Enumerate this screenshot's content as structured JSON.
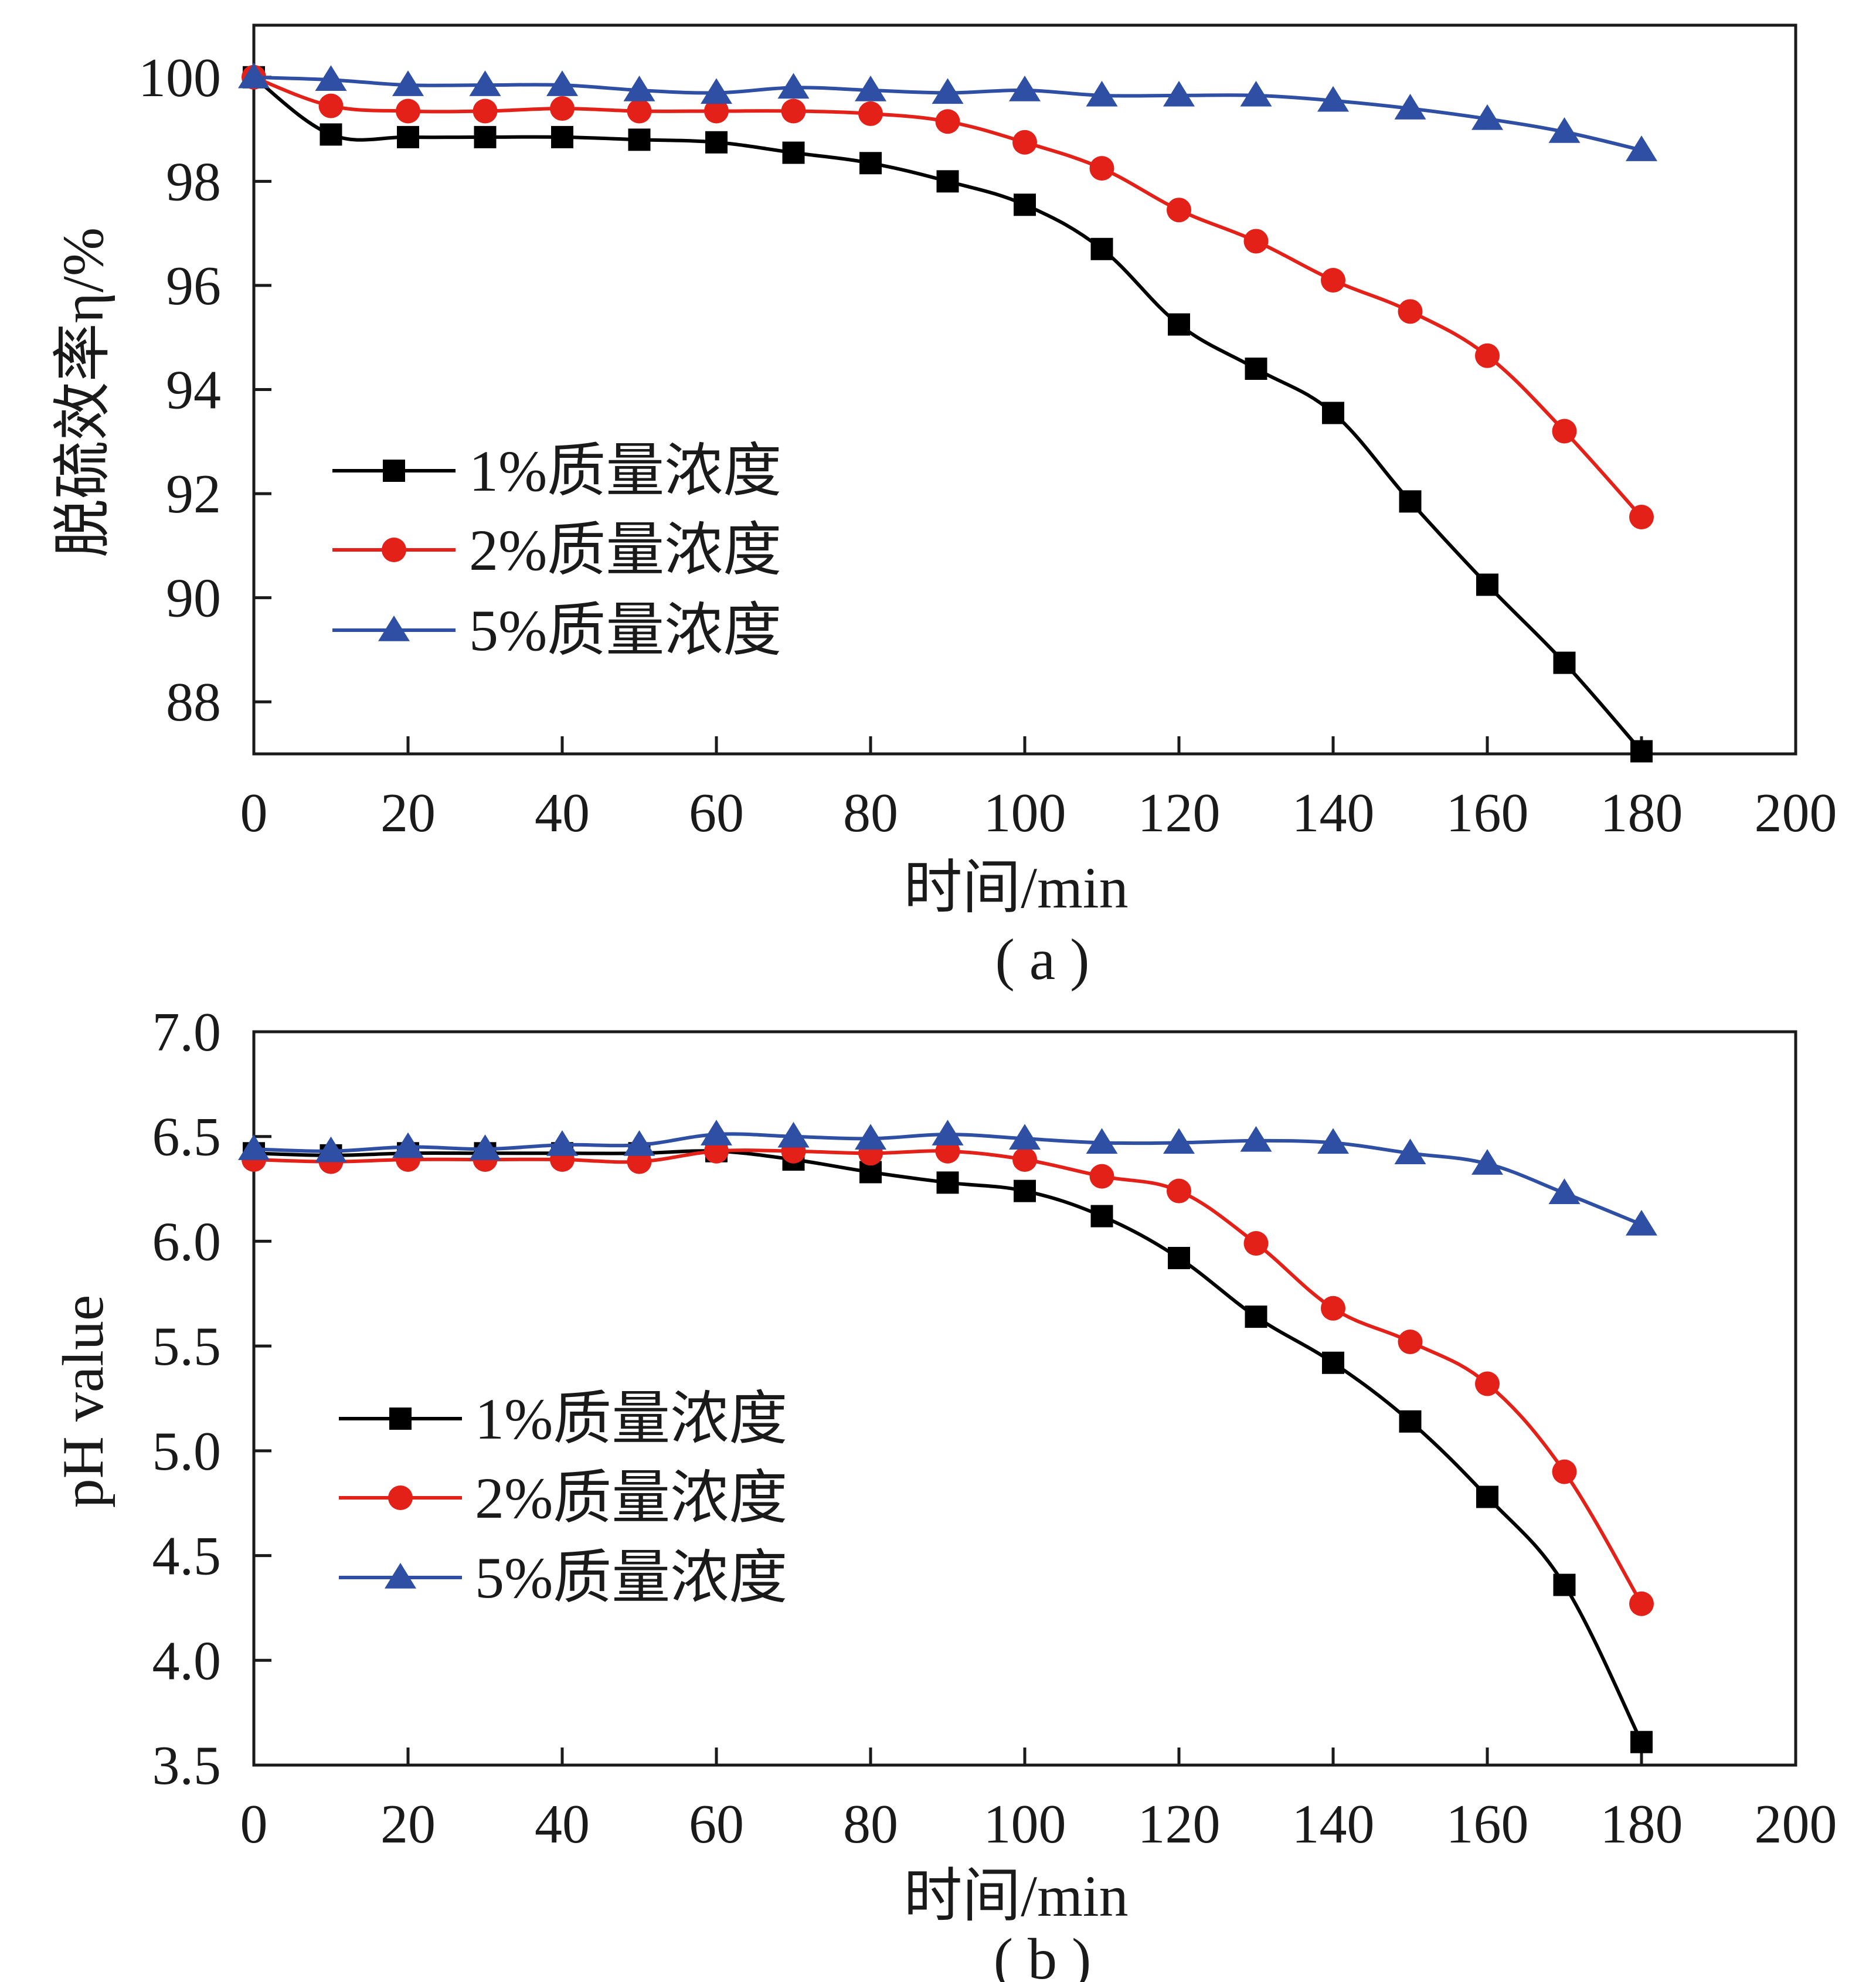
{
  "figure": {
    "panel_labels": [
      "( a )",
      "( b )"
    ]
  },
  "series_colors": [
    "#000000",
    "#e32119",
    "#2e4fa3"
  ],
  "series_markers": [
    "square",
    "circle",
    "triangle"
  ],
  "chart_data": [
    {
      "type": "line",
      "panel": "( a )",
      "xlabel": "时间/min",
      "ylabel": "脱硫效率η/%",
      "xlim": [
        0,
        200
      ],
      "ylim": [
        87,
        101
      ],
      "xticks": [
        "0",
        "20",
        "40",
        "60",
        "80",
        "100",
        "120",
        "140",
        "160",
        "180",
        "200"
      ],
      "yticks": [
        "88",
        "90",
        "92",
        "94",
        "96",
        "98",
        "100"
      ],
      "grid": false,
      "legend_position": "center-left",
      "x": [
        0,
        10,
        20,
        30,
        40,
        50,
        60,
        70,
        80,
        90,
        100,
        110,
        120,
        130,
        140,
        150,
        160,
        170,
        180
      ],
      "series": [
        {
          "name": "1%质量浓度",
          "values": [
            100,
            98.9,
            98.85,
            98.85,
            98.85,
            98.8,
            98.75,
            98.55,
            98.35,
            98.0,
            97.55,
            96.7,
            95.25,
            94.4,
            93.55,
            91.85,
            90.25,
            88.75,
            87.05
          ]
        },
        {
          "name": "2%质量浓度",
          "values": [
            100,
            99.45,
            99.35,
            99.35,
            99.4,
            99.35,
            99.35,
            99.35,
            99.3,
            99.15,
            98.75,
            98.25,
            97.45,
            96.85,
            96.1,
            95.5,
            94.65,
            93.2,
            91.55
          ]
        },
        {
          "name": "5%质量浓度",
          "values": [
            100,
            99.95,
            99.85,
            99.85,
            99.85,
            99.75,
            99.7,
            99.8,
            99.75,
            99.7,
            99.75,
            99.65,
            99.65,
            99.65,
            99.55,
            99.4,
            99.2,
            98.95,
            98.6
          ]
        }
      ]
    },
    {
      "type": "line",
      "panel": "( b )",
      "xlabel": "时间/min",
      "ylabel": "pH value",
      "xlim": [
        0,
        200
      ],
      "ylim": [
        3.5,
        7.0
      ],
      "xticks": [
        "0",
        "20",
        "40",
        "60",
        "80",
        "100",
        "120",
        "140",
        "160",
        "180",
        "200"
      ],
      "yticks": [
        "3.5",
        "4.0",
        "4.5",
        "5.0",
        "5.5",
        "6.0",
        "6.5",
        "7.0"
      ],
      "grid": false,
      "legend_position": "center-left",
      "x": [
        0,
        10,
        20,
        30,
        40,
        50,
        60,
        70,
        80,
        90,
        100,
        110,
        120,
        130,
        140,
        150,
        160,
        170,
        180
      ],
      "series": [
        {
          "name": "1%质量浓度",
          "values": [
            6.42,
            6.41,
            6.42,
            6.42,
            6.42,
            6.42,
            6.43,
            6.39,
            6.33,
            6.28,
            6.24,
            6.12,
            5.92,
            5.64,
            5.42,
            5.14,
            4.78,
            4.36,
            3.61
          ]
        },
        {
          "name": "2%质量浓度",
          "values": [
            6.39,
            6.38,
            6.39,
            6.39,
            6.39,
            6.38,
            6.43,
            6.43,
            6.42,
            6.43,
            6.39,
            6.31,
            6.24,
            5.99,
            5.68,
            5.52,
            5.32,
            4.9,
            4.27
          ]
        },
        {
          "name": "5%质量浓度",
          "values": [
            6.44,
            6.43,
            6.45,
            6.44,
            6.46,
            6.46,
            6.51,
            6.5,
            6.49,
            6.51,
            6.49,
            6.47,
            6.47,
            6.48,
            6.47,
            6.42,
            6.37,
            6.23,
            6.08
          ]
        }
      ]
    }
  ]
}
